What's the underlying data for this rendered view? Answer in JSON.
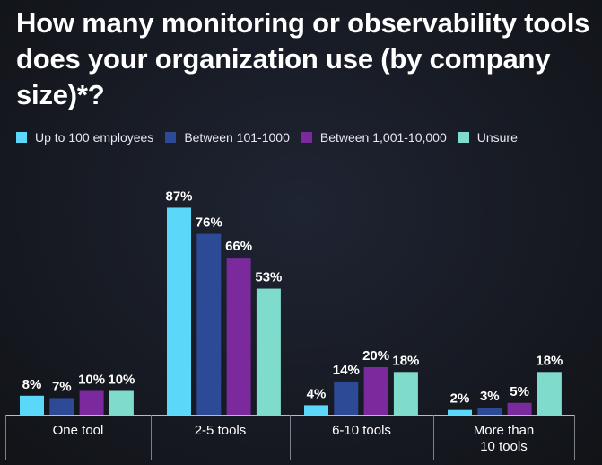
{
  "title": "How many monitoring or observability tools does your organization use (by company size)*?",
  "chart_data": {
    "type": "bar",
    "categories": [
      "One tool",
      "2-5 tools",
      "6-10 tools",
      "More than 10 tools"
    ],
    "series": [
      {
        "name": "Up to 100 employees",
        "color": "#5ad7f9",
        "values": [
          8,
          87,
          4,
          2
        ]
      },
      {
        "name": "Between 101-1000",
        "color": "#2c4a96",
        "values": [
          7,
          76,
          14,
          3
        ]
      },
      {
        "name": "Between 1,001-10,000",
        "color": "#7a2a9c",
        "values": [
          10,
          66,
          20,
          5
        ]
      },
      {
        "name": "Unsure",
        "color": "#7fdccc",
        "values": [
          10,
          53,
          18,
          18
        ]
      }
    ],
    "value_suffix": "%",
    "ylim": [
      0,
      100
    ],
    "grid": false,
    "legend_position": "top"
  }
}
